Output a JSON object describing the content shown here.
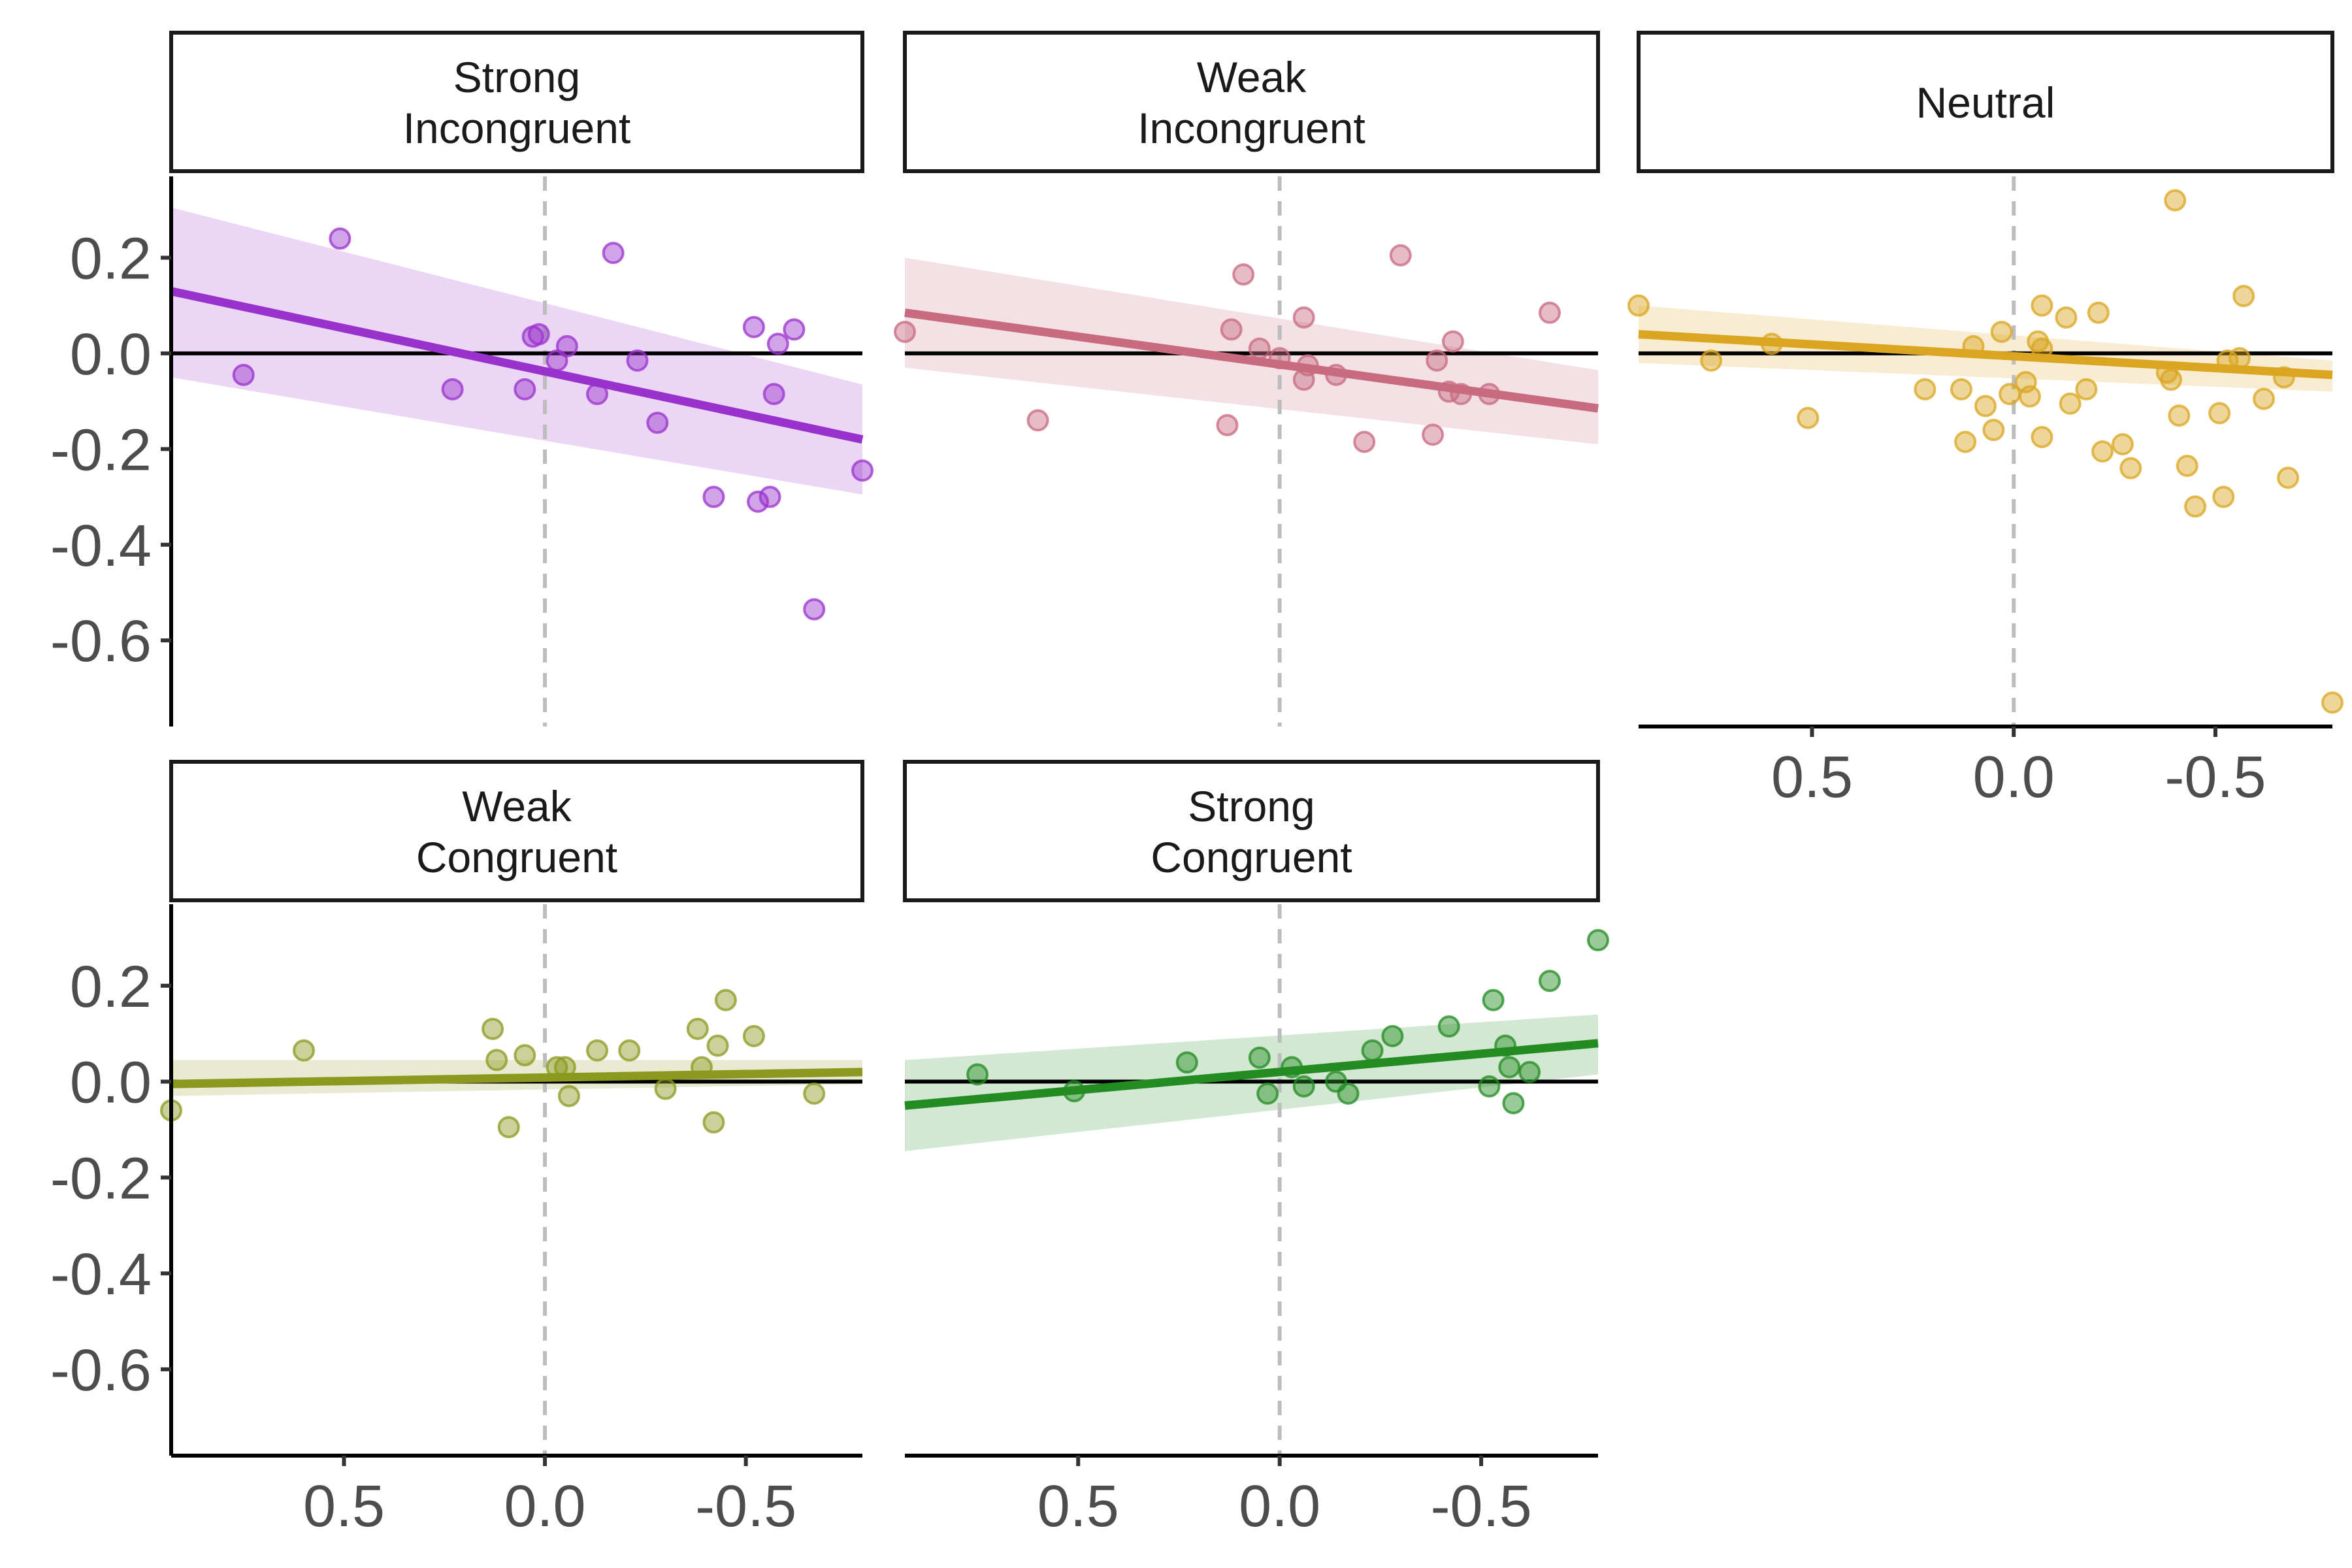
{
  "chart_data": {
    "type": "scatter",
    "facet_layout": "3 columns, 2 rows",
    "x_reversed": true,
    "xlim": [
      0.93,
      -0.79
    ],
    "ylim": [
      -0.78,
      0.37
    ],
    "xticks": [
      0.5,
      0.0,
      -0.5
    ],
    "xtick_labels": [
      "0.5",
      "0.0",
      "-0.5"
    ],
    "yticks": [
      0.2,
      0.0,
      -0.2,
      -0.4,
      -0.6
    ],
    "ytick_labels": [
      "0.2",
      "0.0",
      "-0.2",
      "-0.4",
      "-0.6"
    ],
    "reference_lines": {
      "horizontal_y": 0.0,
      "vertical_x_dashed": 0.0
    },
    "title": "",
    "xlabel": "",
    "ylabel": "",
    "grid": false,
    "panels": [
      {
        "label_lines": [
          "Strong",
          "Incongruent"
        ],
        "color": "#9932CC",
        "fit": {
          "x0": 0.93,
          "y0": 0.13,
          "x1": -0.79,
          "y1": -0.18
        },
        "band": {
          "upper0": 0.305,
          "upper1": -0.065,
          "lower0": -0.05,
          "lower1": -0.295
        },
        "points": [
          [
            0.75,
            -0.045
          ],
          [
            0.51,
            0.24
          ],
          [
            0.23,
            -0.075
          ],
          [
            0.05,
            -0.075
          ],
          [
            0.03,
            0.035
          ],
          [
            0.015,
            0.04
          ],
          [
            -0.03,
            -0.015
          ],
          [
            -0.055,
            0.015
          ],
          [
            -0.13,
            -0.085
          ],
          [
            -0.17,
            0.21
          ],
          [
            -0.23,
            -0.015
          ],
          [
            -0.28,
            -0.145
          ],
          [
            -0.42,
            -0.3
          ],
          [
            -0.52,
            0.055
          ],
          [
            -0.53,
            -0.31
          ],
          [
            -0.56,
            -0.3
          ],
          [
            -0.57,
            -0.085
          ],
          [
            -0.58,
            0.02
          ],
          [
            -0.62,
            0.05
          ],
          [
            -0.67,
            -0.535
          ],
          [
            -0.79,
            -0.245
          ]
        ]
      },
      {
        "label_lines": [
          "Weak",
          "Incongruent"
        ],
        "color": "#C86A80",
        "fit": {
          "x0": 0.93,
          "y0": 0.085,
          "x1": -0.79,
          "y1": -0.115
        },
        "band": {
          "upper0": 0.2,
          "upper1": -0.035,
          "lower0": -0.03,
          "lower1": -0.19
        },
        "points": [
          [
            0.93,
            0.045
          ],
          [
            0.6,
            -0.14
          ],
          [
            0.13,
            -0.15
          ],
          [
            0.12,
            0.05
          ],
          [
            0.09,
            0.165
          ],
          [
            0.05,
            0.01
          ],
          [
            0.0,
            -0.01
          ],
          [
            -0.06,
            -0.055
          ],
          [
            -0.06,
            0.075
          ],
          [
            -0.07,
            -0.025
          ],
          [
            -0.14,
            -0.045
          ],
          [
            -0.21,
            -0.185
          ],
          [
            -0.3,
            0.205
          ],
          [
            -0.38,
            -0.17
          ],
          [
            -0.39,
            -0.015
          ],
          [
            -0.42,
            -0.08
          ],
          [
            -0.43,
            0.025
          ],
          [
            -0.45,
            -0.085
          ],
          [
            -0.52,
            -0.085
          ],
          [
            -0.67,
            0.085
          ]
        ]
      },
      {
        "label_lines": [
          "Neutral"
        ],
        "color": "#DAA520",
        "fit": {
          "x0": 0.93,
          "y0": 0.04,
          "x1": -0.79,
          "y1": -0.045
        },
        "band": {
          "upper0": 0.1,
          "upper1": -0.015,
          "lower0": -0.02,
          "lower1": -0.08
        },
        "points": [
          [
            0.93,
            0.1
          ],
          [
            0.75,
            -0.015
          ],
          [
            0.6,
            0.02
          ],
          [
            0.51,
            -0.135
          ],
          [
            0.22,
            -0.075
          ],
          [
            0.13,
            -0.075
          ],
          [
            0.12,
            -0.185
          ],
          [
            0.1,
            0.015
          ],
          [
            0.07,
            -0.11
          ],
          [
            0.05,
            -0.16
          ],
          [
            0.03,
            0.045
          ],
          [
            0.01,
            -0.085
          ],
          [
            -0.03,
            -0.06
          ],
          [
            -0.04,
            -0.09
          ],
          [
            -0.06,
            0.025
          ],
          [
            -0.07,
            0.01
          ],
          [
            -0.07,
            -0.175
          ],
          [
            -0.07,
            0.1
          ],
          [
            -0.13,
            0.075
          ],
          [
            -0.14,
            -0.105
          ],
          [
            -0.18,
            -0.075
          ],
          [
            -0.21,
            0.085
          ],
          [
            -0.22,
            -0.205
          ],
          [
            -0.27,
            -0.19
          ],
          [
            -0.29,
            -0.24
          ],
          [
            -0.38,
            -0.04
          ],
          [
            -0.39,
            -0.055
          ],
          [
            -0.4,
            0.32
          ],
          [
            -0.41,
            -0.13
          ],
          [
            -0.43,
            -0.235
          ],
          [
            -0.45,
            -0.32
          ],
          [
            -0.51,
            -0.125
          ],
          [
            -0.52,
            -0.3
          ],
          [
            -0.53,
            -0.015
          ],
          [
            -0.56,
            -0.01
          ],
          [
            -0.57,
            0.12
          ],
          [
            -0.62,
            -0.095
          ],
          [
            -0.67,
            -0.05
          ],
          [
            -0.68,
            -0.26
          ],
          [
            -0.79,
            -0.73
          ]
        ]
      },
      {
        "label_lines": [
          "Weak",
          "Congruent"
        ],
        "color": "#8B9A1F",
        "fit": {
          "x0": 0.93,
          "y0": -0.005,
          "x1": -0.79,
          "y1": 0.02
        },
        "band": {
          "upper0": 0.045,
          "upper1": 0.045,
          "lower0": -0.03,
          "lower1": -0.005
        },
        "points": [
          [
            0.93,
            -0.06
          ],
          [
            0.6,
            0.065
          ],
          [
            0.13,
            0.11
          ],
          [
            0.12,
            0.045
          ],
          [
            0.09,
            -0.095
          ],
          [
            0.05,
            0.055
          ],
          [
            -0.03,
            0.03
          ],
          [
            -0.05,
            0.03
          ],
          [
            -0.06,
            -0.03
          ],
          [
            -0.13,
            0.065
          ],
          [
            -0.21,
            0.065
          ],
          [
            -0.3,
            -0.015
          ],
          [
            -0.38,
            0.11
          ],
          [
            -0.39,
            0.03
          ],
          [
            -0.42,
            -0.085
          ],
          [
            -0.43,
            0.075
          ],
          [
            -0.45,
            0.17
          ],
          [
            -0.52,
            0.095
          ],
          [
            -0.67,
            -0.025
          ]
        ]
      },
      {
        "label_lines": [
          "Strong",
          "Congruent"
        ],
        "color": "#228B22",
        "fit": {
          "x0": 0.93,
          "y0": -0.05,
          "x1": -0.79,
          "y1": 0.08
        },
        "band": {
          "upper0": 0.045,
          "upper1": 0.14,
          "lower0": -0.145,
          "lower1": 0.015
        },
        "points": [
          [
            0.75,
            0.015
          ],
          [
            0.51,
            -0.02
          ],
          [
            0.23,
            0.04
          ],
          [
            0.05,
            0.05
          ],
          [
            0.03,
            -0.025
          ],
          [
            -0.03,
            0.03
          ],
          [
            -0.06,
            -0.01
          ],
          [
            -0.14,
            0.0
          ],
          [
            -0.17,
            -0.025
          ],
          [
            -0.23,
            0.065
          ],
          [
            -0.28,
            0.095
          ],
          [
            -0.42,
            0.115
          ],
          [
            -0.52,
            -0.01
          ],
          [
            -0.53,
            0.17
          ],
          [
            -0.56,
            0.075
          ],
          [
            -0.57,
            0.03
          ],
          [
            -0.58,
            -0.045
          ],
          [
            -0.62,
            0.02
          ],
          [
            -0.67,
            0.21
          ],
          [
            -0.79,
            0.295
          ]
        ]
      }
    ]
  }
}
